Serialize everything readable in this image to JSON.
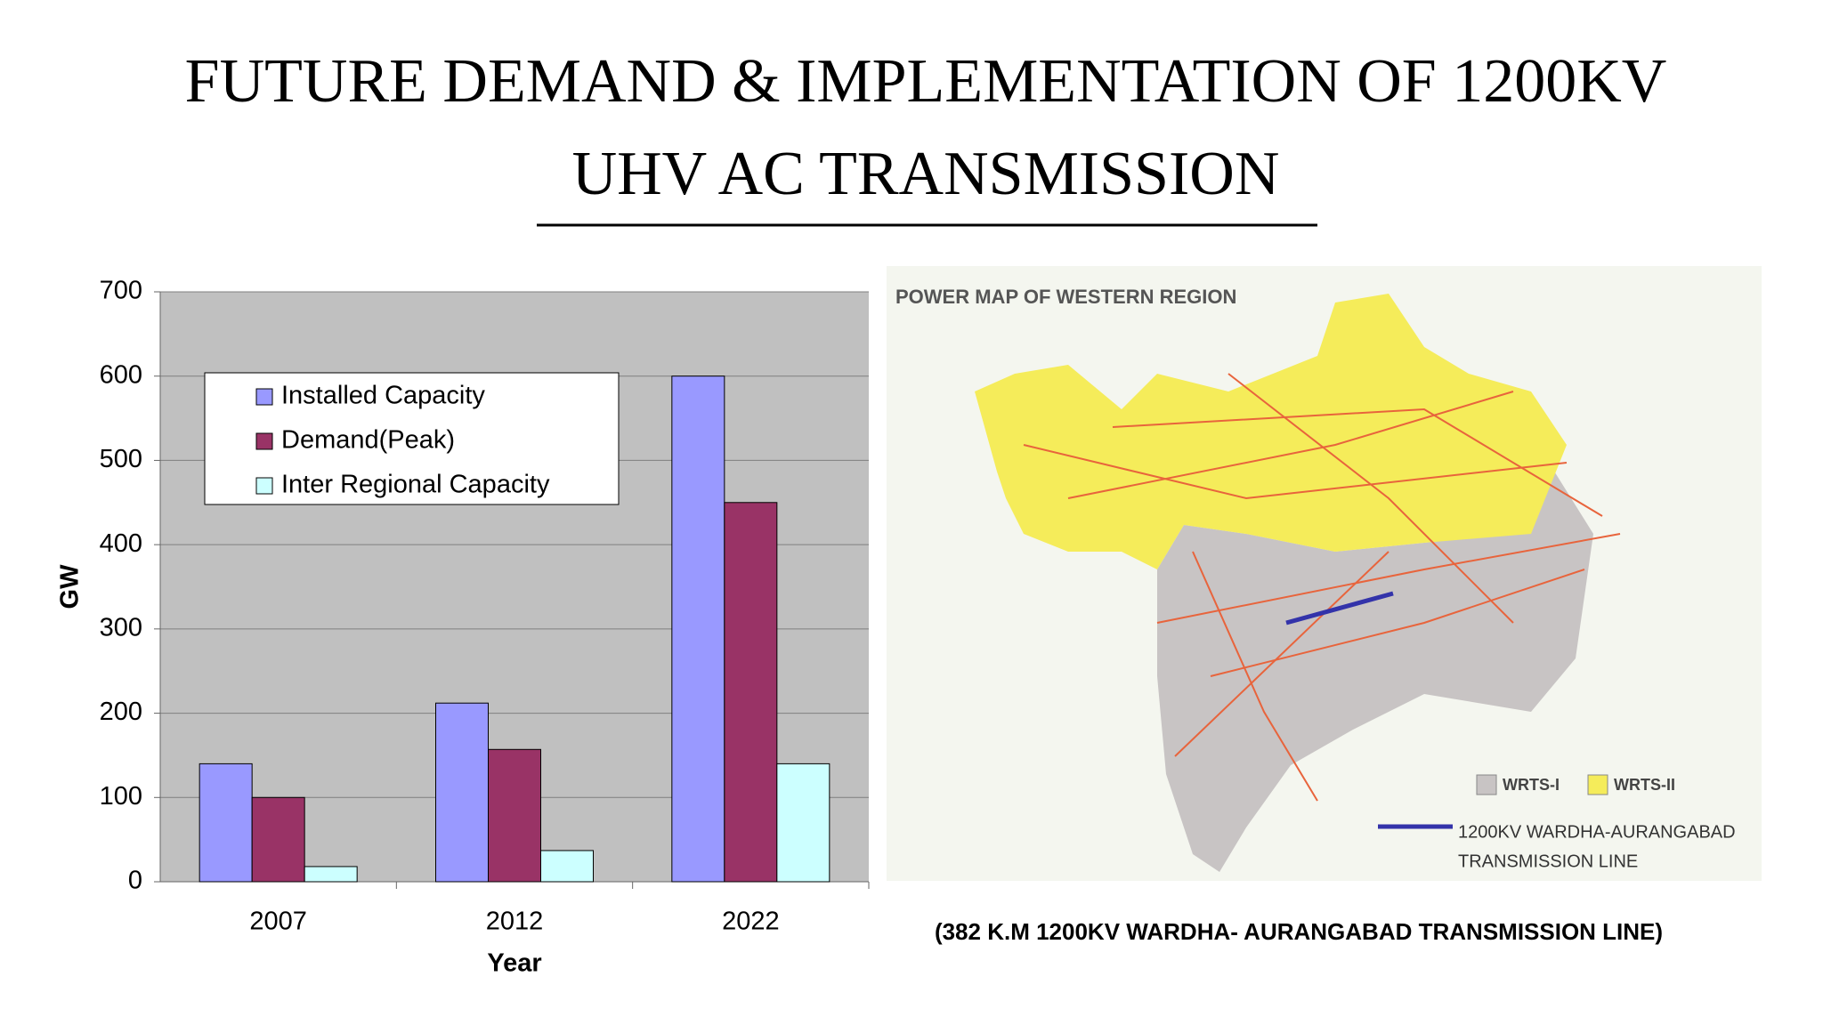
{
  "title": {
    "lines": [
      "FUTURE DEMAND & IMPLEMENTATION OF 1200KV",
      "UHV AC TRANSMISSION"
    ]
  },
  "chart_data": {
    "type": "bar",
    "categories": [
      "2007",
      "2012",
      "2022"
    ],
    "series": [
      {
        "name": "Installed Capacity",
        "color": "#9999ff",
        "values": [
          140,
          212,
          600
        ]
      },
      {
        "name": "Demand(Peak)",
        "color": "#993366",
        "values": [
          100,
          157,
          450
        ]
      },
      {
        "name": "Inter Regional Capacity",
        "color": "#ccffff",
        "values": [
          18,
          37,
          140
        ]
      }
    ],
    "x_label": "Year",
    "y_label": "GW",
    "ylim": [
      0,
      700
    ],
    "yticks": [
      0,
      100,
      200,
      300,
      400,
      500,
      600,
      700
    ],
    "grid": true,
    "legend": "upper-left"
  },
  "map": {
    "title": "POWER MAP OF WESTERN REGION",
    "legend": [
      "WRTS-I",
      "WRTS-II"
    ],
    "line_label": [
      "1200KV WARDHA-AURANGABAD",
      "TRANSMISSION LINE"
    ]
  },
  "caption": "(382 K.M 1200KV WARDHA- AURANGABAD TRANSMISSION LINE)"
}
